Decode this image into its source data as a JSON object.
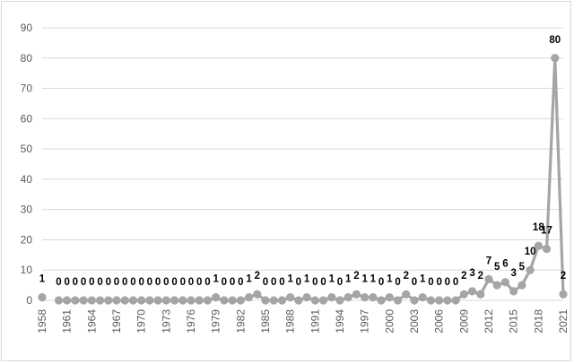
{
  "colors": {
    "series": "#a5a5a5",
    "gridline": "#d9d9d9",
    "axis_text": "#595959",
    "data_label": "#000000"
  },
  "chart_data": {
    "type": "line",
    "title": "",
    "xlabel": "",
    "ylabel": "",
    "ylim": [
      0,
      90
    ],
    "y_ticks": [
      "0",
      "10",
      "20",
      "30",
      "40",
      "50",
      "60",
      "70",
      "80",
      "90"
    ],
    "x_tick_labels": [
      "1958",
      "1961",
      "1964",
      "1967",
      "1970",
      "1973",
      "1976",
      "1979",
      "1982",
      "1985",
      "1988",
      "1991",
      "1994",
      "1997",
      "2000",
      "2003",
      "2006",
      "2009",
      "2012",
      "2015",
      "2018",
      "2021"
    ],
    "grid": true,
    "legend": "none",
    "markers": "circle",
    "data_labels": true,
    "series": [
      {
        "x": [
          1958,
          1960,
          1961,
          1962,
          1963,
          1964,
          1965,
          1966,
          1967,
          1968,
          1969,
          1970,
          1971,
          1972,
          1973,
          1974,
          1975,
          1976,
          1977,
          1978,
          1979,
          1980,
          1981,
          1982,
          1983,
          1984,
          1985,
          1986,
          1987,
          1988,
          1989,
          1990,
          1991,
          1992,
          1993,
          1994,
          1995,
          1996,
          1997,
          1998,
          1999,
          2000,
          2001,
          2002,
          2003,
          2004,
          2005,
          2006,
          2007,
          2008,
          2009,
          2010,
          2011,
          2012,
          2013,
          2014,
          2015,
          2016,
          2017,
          2018,
          2019,
          2020,
          2021
        ],
        "values": [
          1,
          0,
          0,
          0,
          0,
          0,
          0,
          0,
          0,
          0,
          0,
          0,
          0,
          0,
          0,
          0,
          0,
          0,
          0,
          0,
          1,
          0,
          0,
          0,
          1,
          2,
          0,
          0,
          0,
          1,
          0,
          1,
          0,
          0,
          1,
          0,
          1,
          2,
          1,
          1,
          0,
          1,
          0,
          2,
          0,
          1,
          0,
          0,
          0,
          0,
          2,
          3,
          2,
          7,
          5,
          6,
          3,
          5,
          10,
          18,
          17,
          80,
          2
        ]
      }
    ]
  }
}
